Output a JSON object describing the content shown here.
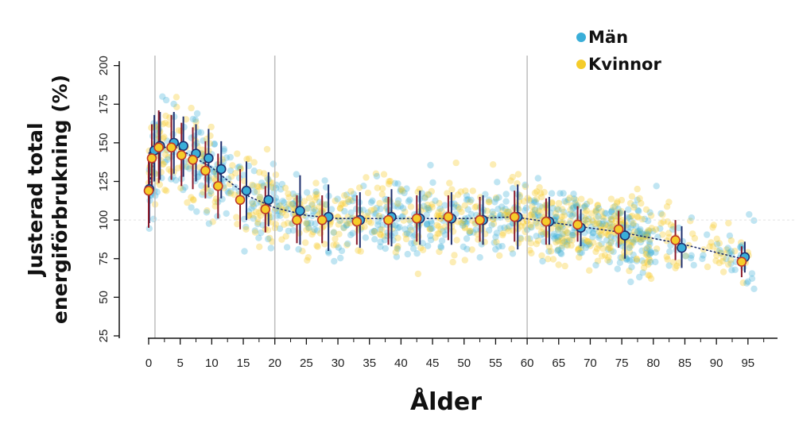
{
  "chart_data": {
    "type": "scatter",
    "title": "",
    "xlabel": "Ålder",
    "ylabel_line1": "Justerad total",
    "ylabel_line2": "energiförbrukning (%)",
    "xlim": [
      -1,
      100
    ],
    "ylim": [
      25,
      205
    ],
    "x_ticks": [
      "0",
      "5",
      "10",
      "15",
      "20",
      "25",
      "30",
      "35",
      "40",
      "45",
      "50",
      "55",
      "60",
      "65",
      "70",
      "75",
      "80",
      "85",
      "90",
      "95"
    ],
    "y_ticks": [
      "25",
      "50",
      "75",
      "100",
      "125",
      "150",
      "175",
      "200"
    ],
    "reference_ages": [
      1,
      20,
      60
    ],
    "reference_level": 100,
    "colors": {
      "men": "#3aaed8",
      "women": "#f5cc2a",
      "women_edge": "#c0392b",
      "men_edge": "#1f2f6e",
      "error_bar": "#8b1a2b"
    },
    "series": [
      {
        "name": "Män",
        "color": "#3aaed8",
        "points": [
          {
            "x": 0.1,
            "y": 120,
            "lo": 98,
            "hi": 144
          },
          {
            "x": 0.9,
            "y": 145,
            "lo": 125,
            "hi": 168
          },
          {
            "x": 1.8,
            "y": 148,
            "lo": 126,
            "hi": 170
          },
          {
            "x": 4.0,
            "y": 150,
            "lo": 130,
            "hi": 170
          },
          {
            "x": 5.5,
            "y": 148,
            "lo": 128,
            "hi": 167
          },
          {
            "x": 7.5,
            "y": 143,
            "lo": 125,
            "hi": 162
          },
          {
            "x": 9.5,
            "y": 140,
            "lo": 121,
            "hi": 159
          },
          {
            "x": 11.5,
            "y": 133,
            "lo": 114,
            "hi": 151
          },
          {
            "x": 15.5,
            "y": 119,
            "lo": 100,
            "hi": 138
          },
          {
            "x": 19.0,
            "y": 113,
            "lo": 96,
            "hi": 131
          },
          {
            "x": 24.0,
            "y": 106,
            "lo": 84,
            "hi": 129
          },
          {
            "x": 28.5,
            "y": 102,
            "lo": 80,
            "hi": 123
          },
          {
            "x": 33.5,
            "y": 100,
            "lo": 82,
            "hi": 118
          },
          {
            "x": 38.5,
            "y": 102,
            "lo": 83,
            "hi": 120
          },
          {
            "x": 43.0,
            "y": 101,
            "lo": 84,
            "hi": 119
          },
          {
            "x": 48.0,
            "y": 101,
            "lo": 84,
            "hi": 118
          },
          {
            "x": 53.0,
            "y": 100,
            "lo": 84,
            "hi": 116
          },
          {
            "x": 58.5,
            "y": 102,
            "lo": 81,
            "hi": 123
          },
          {
            "x": 63.5,
            "y": 99,
            "lo": 84,
            "hi": 115
          },
          {
            "x": 68.5,
            "y": 95,
            "lo": 83,
            "hi": 107
          },
          {
            "x": 75.5,
            "y": 90,
            "lo": 75,
            "hi": 106
          },
          {
            "x": 84.5,
            "y": 82,
            "lo": 69,
            "hi": 96
          },
          {
            "x": 94.5,
            "y": 76,
            "lo": 66,
            "hi": 86
          }
        ]
      },
      {
        "name": "Kvinnor",
        "color": "#f5cc2a",
        "points": [
          {
            "x": 0.0,
            "y": 119,
            "lo": 95,
            "hi": 142
          },
          {
            "x": 0.5,
            "y": 140,
            "lo": 120,
            "hi": 162
          },
          {
            "x": 1.6,
            "y": 147,
            "lo": 124,
            "hi": 171
          },
          {
            "x": 3.6,
            "y": 147,
            "lo": 126,
            "hi": 168
          },
          {
            "x": 5.2,
            "y": 142,
            "lo": 122,
            "hi": 163
          },
          {
            "x": 7.0,
            "y": 139,
            "lo": 120,
            "hi": 160
          },
          {
            "x": 9.0,
            "y": 132,
            "lo": 114,
            "hi": 151
          },
          {
            "x": 11.0,
            "y": 122,
            "lo": 101,
            "hi": 143
          },
          {
            "x": 14.5,
            "y": 113,
            "lo": 94,
            "hi": 133
          },
          {
            "x": 18.5,
            "y": 107,
            "lo": 92,
            "hi": 122
          },
          {
            "x": 23.5,
            "y": 100,
            "lo": 85,
            "hi": 116
          },
          {
            "x": 27.5,
            "y": 100,
            "lo": 85,
            "hi": 116
          },
          {
            "x": 33.0,
            "y": 99,
            "lo": 84,
            "hi": 116
          },
          {
            "x": 38.0,
            "y": 100,
            "lo": 84,
            "hi": 115
          },
          {
            "x": 42.5,
            "y": 101,
            "lo": 86,
            "hi": 116
          },
          {
            "x": 47.5,
            "y": 102,
            "lo": 87,
            "hi": 116
          },
          {
            "x": 52.5,
            "y": 100,
            "lo": 86,
            "hi": 115
          },
          {
            "x": 58.0,
            "y": 102,
            "lo": 86,
            "hi": 119
          },
          {
            "x": 63.0,
            "y": 99,
            "lo": 84,
            "hi": 114
          },
          {
            "x": 68.0,
            "y": 97,
            "lo": 86,
            "hi": 109
          },
          {
            "x": 74.5,
            "y": 94,
            "lo": 82,
            "hi": 106
          },
          {
            "x": 83.5,
            "y": 87,
            "lo": 74,
            "hi": 100
          },
          {
            "x": 94.0,
            "y": 73,
            "lo": 63,
            "hi": 83
          }
        ]
      }
    ],
    "trend_line": [
      {
        "x": 0,
        "y": 119
      },
      {
        "x": 1,
        "y": 146
      },
      {
        "x": 4,
        "y": 148
      },
      {
        "x": 7,
        "y": 141
      },
      {
        "x": 10,
        "y": 134
      },
      {
        "x": 13,
        "y": 124
      },
      {
        "x": 16,
        "y": 115
      },
      {
        "x": 20,
        "y": 108
      },
      {
        "x": 25,
        "y": 103
      },
      {
        "x": 30,
        "y": 101
      },
      {
        "x": 40,
        "y": 101
      },
      {
        "x": 50,
        "y": 101
      },
      {
        "x": 58,
        "y": 102
      },
      {
        "x": 63,
        "y": 99
      },
      {
        "x": 68,
        "y": 96
      },
      {
        "x": 75,
        "y": 92
      },
      {
        "x": 84,
        "y": 85
      },
      {
        "x": 95,
        "y": 74
      }
    ]
  },
  "legend": [
    {
      "label": "Män",
      "color": "#3aaed8"
    },
    {
      "label": "Kvinnor",
      "color": "#f5cc2a"
    }
  ]
}
